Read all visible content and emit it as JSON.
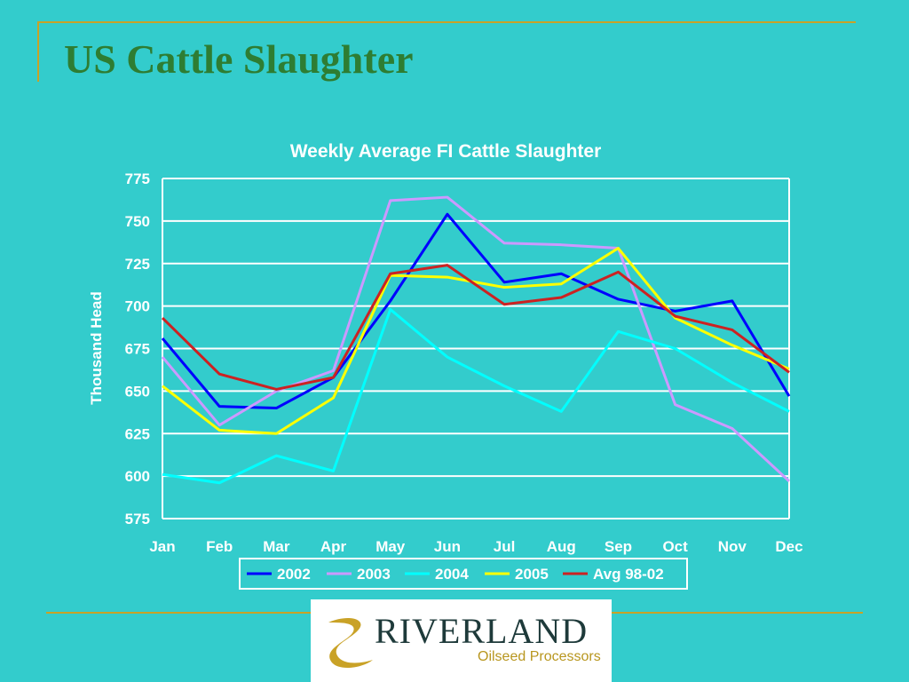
{
  "slide": {
    "title": "US Cattle Slaughter"
  },
  "logo": {
    "name": "RIVERLAND",
    "tagline": "Oilseed Processors"
  },
  "colors": {
    "background": "#33CCCC",
    "title": "#2E7D32",
    "rule": "#C9A227"
  },
  "chart_data": {
    "type": "line",
    "title": "Weekly Average FI Cattle Slaughter",
    "xlabel": "",
    "ylabel": "Thousand Head",
    "categories": [
      "Jan",
      "Feb",
      "Mar",
      "Apr",
      "May",
      "Jun",
      "Jul",
      "Aug",
      "Sep",
      "Oct",
      "Nov",
      "Dec"
    ],
    "ylim": [
      575,
      775
    ],
    "yticks": [
      575,
      600,
      625,
      650,
      675,
      700,
      725,
      750,
      775
    ],
    "grid": true,
    "legend": "bottom",
    "series": [
      {
        "name": "2002",
        "color": "#0000FF",
        "values": [
          681,
          641,
          640,
          658,
          703,
          754,
          714,
          719,
          704,
          697,
          703,
          647
        ]
      },
      {
        "name": "2003",
        "color": "#CC99FF",
        "values": [
          670,
          630,
          650,
          662,
          762,
          764,
          737,
          736,
          734,
          642,
          628,
          597
        ]
      },
      {
        "name": "2004",
        "color": "#00FFFF",
        "values": [
          601,
          596,
          612,
          603,
          698,
          670,
          653,
          638,
          685,
          675,
          655,
          638
        ]
      },
      {
        "name": "2005",
        "color": "#FFFF00",
        "values": [
          653,
          627,
          625,
          646,
          718,
          717,
          711,
          713,
          734,
          693,
          677,
          663
        ]
      },
      {
        "name": "Avg 98-02",
        "color": "#CC2222",
        "values": [
          693,
          660,
          651,
          658,
          719,
          724,
          701,
          705,
          720,
          694,
          686,
          661
        ]
      }
    ]
  }
}
